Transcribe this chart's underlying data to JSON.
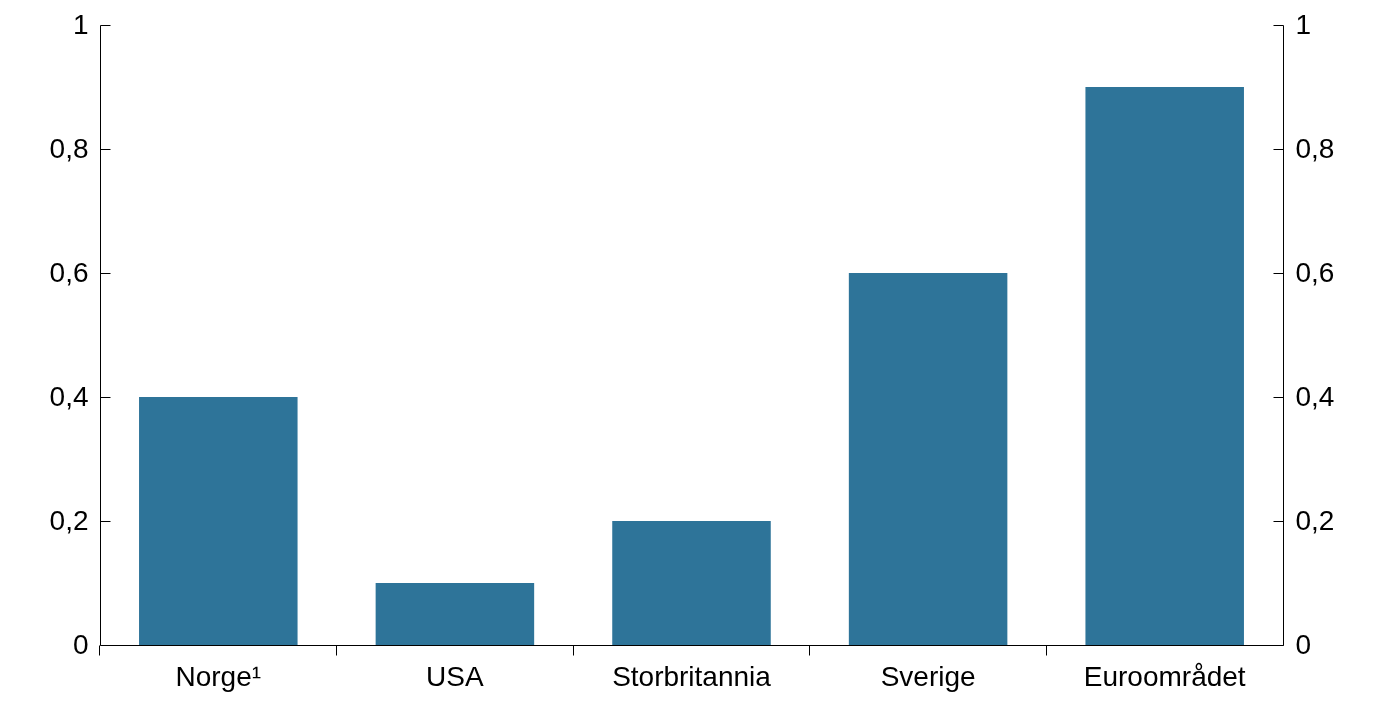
{
  "chart_data": {
    "type": "bar",
    "categories": [
      "Norge¹",
      "USA",
      "Storbritannia",
      "Sverige",
      "Euroområdet"
    ],
    "values": [
      0.4,
      0.1,
      0.2,
      0.6,
      0.9
    ],
    "color": "#2e7499",
    "ylim": [
      0,
      1
    ],
    "yticks": [
      0,
      {
        "value": 0.2,
        "label": "0,2"
      },
      {
        "value": 0.4,
        "label": "0,4"
      },
      {
        "value": 0.6,
        "label": "0,6"
      },
      {
        "value": 0.8,
        "label": "0,8"
      },
      1
    ],
    "y2lim": [
      0,
      1
    ],
    "y2ticks": [
      0,
      {
        "value": 0.2,
        "label": "0,2"
      },
      {
        "value": 0.4,
        "label": "0,4"
      },
      {
        "value": 0.6,
        "label": "0,6"
      },
      {
        "value": 0.8,
        "label": "0,8"
      },
      1
    ],
    "grid": false
  }
}
